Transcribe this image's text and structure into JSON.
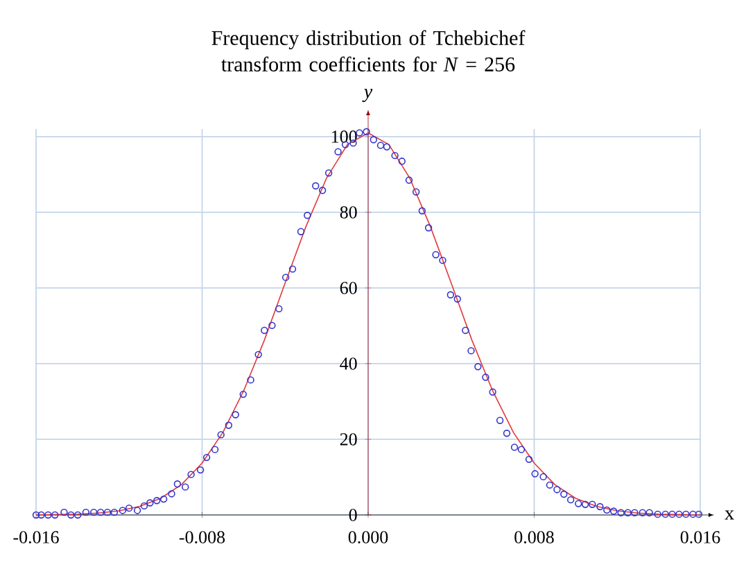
{
  "chart_data": {
    "type": "scatter",
    "title": "Frequency distribution of Tchebichef transform coefficients for *N* = 256",
    "xlabel": "x",
    "ylabel": "y",
    "xlim": [
      -0.016,
      0.016
    ],
    "ylim": [
      0,
      102
    ],
    "xticks": [
      {
        "value": -0.016,
        "label": "-0.016"
      },
      {
        "value": -0.008,
        "label": "-0.008"
      },
      {
        "value": 0,
        "label": "0.000"
      },
      {
        "value": 0.008,
        "label": "0.008"
      },
      {
        "value": 0.016,
        "label": "0.016"
      }
    ],
    "yticks": [
      0,
      20,
      40,
      60,
      80,
      100
    ],
    "grid": true,
    "series": [
      {
        "type": "line",
        "color": "#e03a3a",
        "marker": "none",
        "line_style": "solid",
        "x": [
          -0.016,
          -0.015,
          -0.014,
          -0.013,
          -0.012,
          -0.011,
          -0.01,
          -0.009,
          -0.008,
          -0.007,
          -0.006,
          -0.005,
          -0.004,
          -0.003,
          -0.002,
          -0.001,
          0,
          0.001,
          0.002,
          0.003,
          0.004,
          0.005,
          0.006,
          0.007,
          0.008,
          0.009,
          0.01,
          0.011,
          0.012,
          0.013,
          0.014,
          0.015,
          0.016
        ],
        "values": [
          0,
          0.1,
          0.2,
          0.5,
          1.1,
          2.3,
          4.4,
          8.0,
          13.7,
          21.8,
          32.8,
          46.2,
          61.3,
          76.2,
          89.1,
          97.9,
          101,
          97.9,
          89.1,
          76.2,
          61.3,
          46.2,
          32.8,
          21.8,
          13.7,
          8.0,
          4.4,
          2.3,
          1.1,
          0.5,
          0.2,
          0.1,
          0
        ]
      },
      {
        "color": "#3333cc",
        "marker": "circle",
        "x": [
          -0.016,
          -0.01575,
          -0.01542,
          -0.01509,
          -0.01465,
          -0.01432,
          -0.01399,
          -0.0136,
          -0.01322,
          -0.01289,
          -0.01256,
          -0.01223,
          -0.01183,
          -0.01152,
          -0.01112,
          -0.01079,
          -0.01051,
          -0.01018,
          -0.00985,
          -0.00947,
          -0.00919,
          -0.00881,
          -0.00853,
          -0.00808,
          -0.00778,
          -0.00738,
          -0.00709,
          -0.00672,
          -0.00639,
          -0.00602,
          -0.00566,
          -0.00529,
          -0.005,
          -0.00463,
          -0.0043,
          -0.00397,
          -0.00364,
          -0.00324,
          -0.00293,
          -0.00253,
          -0.0022,
          -0.0019,
          -0.00145,
          -0.0011,
          -0.00072,
          -0.00042,
          -8e-05,
          0.00026,
          0.0006,
          0.0009,
          0.00129,
          0.00163,
          0.00197,
          0.00231,
          0.0026,
          0.00291,
          0.00326,
          0.00359,
          0.00397,
          0.0043,
          0.00469,
          0.00496,
          0.00529,
          0.00566,
          0.006,
          0.00635,
          0.00668,
          0.00705,
          0.00738,
          0.00775,
          0.00804,
          0.00844,
          0.00875,
          0.0091,
          0.00943,
          0.00976,
          0.01013,
          0.01046,
          0.0108,
          0.01117,
          0.0115,
          0.01183,
          0.01218,
          0.01251,
          0.01284,
          0.01322,
          0.01355,
          0.01395,
          0.01432,
          0.01465,
          0.01498,
          0.01531,
          0.01565,
          0.01593
        ],
        "values": [
          0,
          0,
          0,
          0,
          0.7,
          0,
          0,
          0.7,
          0.7,
          0.7,
          0.7,
          0.7,
          1.2,
          1.8,
          1.2,
          2.4,
          3.2,
          3.8,
          4.2,
          5.6,
          8.2,
          7.4,
          10.7,
          11.9,
          15.2,
          17.3,
          21.2,
          23.7,
          26.5,
          31.9,
          35.7,
          42.4,
          48.8,
          50.1,
          54.5,
          62.8,
          65.0,
          74.9,
          79.2,
          87.0,
          85.8,
          90.4,
          96.0,
          97.9,
          98.3,
          101.0,
          101.3,
          99.2,
          97.7,
          97.3,
          95.0,
          93.5,
          88.5,
          85.4,
          80.4,
          75.9,
          68.8,
          67.3,
          58.2,
          57.1,
          48.8,
          43.4,
          39.2,
          36.4,
          32.5,
          25.0,
          21.6,
          17.9,
          17.3,
          14.7,
          10.9,
          10.1,
          7.9,
          6.7,
          5.5,
          4.0,
          3.0,
          2.8,
          2.8,
          2.2,
          1.3,
          1.0,
          0.6,
          0.6,
          0.6,
          0.6,
          0.6,
          0.2,
          0.2,
          0.2,
          0.2,
          0.2,
          0.2,
          0.2
        ]
      }
    ]
  }
}
